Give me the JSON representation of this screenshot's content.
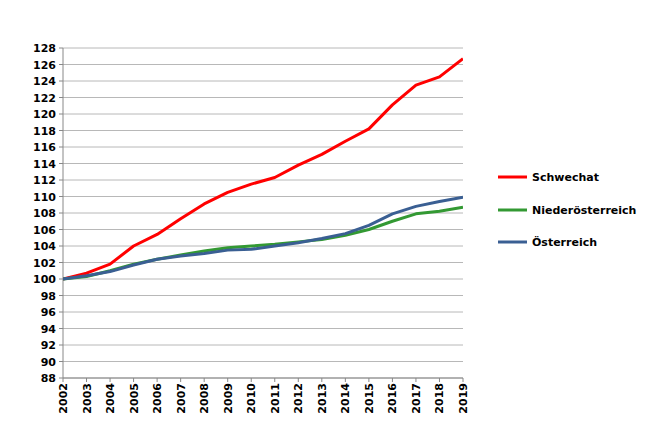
{
  "chart_data": {
    "type": "line",
    "categories": [
      "2002",
      "2003",
      "2004",
      "2005",
      "2006",
      "2007",
      "2008",
      "2009",
      "2010",
      "2011",
      "2012",
      "2013",
      "2014",
      "2015",
      "2016",
      "2017",
      "2018",
      "2019"
    ],
    "series": [
      {
        "name": "Schwechat",
        "color": "#ff0000",
        "values": [
          100,
          100.7,
          101.8,
          104,
          105.4,
          107.3,
          109.1,
          110.5,
          111.5,
          112.3,
          113.8,
          115.1,
          116.7,
          118.2,
          121.1,
          123.5,
          124.5,
          126.7
        ]
      },
      {
        "name": "Niederösterreich",
        "color": "#339933",
        "values": [
          100,
          100.3,
          101.0,
          101.8,
          102.4,
          102.9,
          103.4,
          103.8,
          104.0,
          104.2,
          104.5,
          104.8,
          105.3,
          106.0,
          107.0,
          107.9,
          108.2,
          108.7
        ]
      },
      {
        "name": "Österreich",
        "color": "#3a5f93",
        "values": [
          100,
          100.4,
          100.9,
          101.7,
          102.4,
          102.8,
          103.1,
          103.5,
          103.6,
          104.0,
          104.4,
          104.9,
          105.5,
          106.5,
          107.9,
          108.8,
          109.4,
          109.9
        ]
      }
    ],
    "ylim": [
      88,
      128
    ],
    "yticks": [
      88,
      90,
      92,
      94,
      96,
      98,
      100,
      102,
      104,
      106,
      108,
      110,
      112,
      114,
      116,
      118,
      120,
      122,
      124,
      126,
      128
    ],
    "grid": true,
    "legend": "right"
  }
}
